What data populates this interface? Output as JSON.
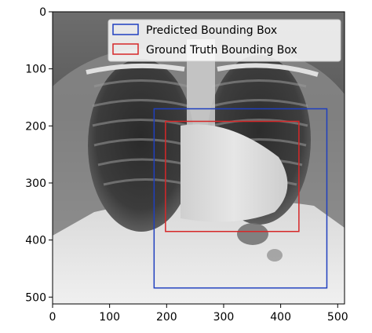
{
  "chart_data": {
    "type": "image",
    "title": "",
    "xlabel": "",
    "ylabel": "",
    "xlim": [
      0,
      512
    ],
    "ylim": [
      512,
      0
    ],
    "y_axis_inverted": true,
    "x_ticks": [
      0,
      100,
      200,
      300,
      400,
      500
    ],
    "y_ticks": [
      0,
      100,
      200,
      300,
      400,
      500
    ],
    "grid": false,
    "image": "grayscale chest x-ray",
    "legend": {
      "placement": "top-right",
      "entries": [
        {
          "label": "Predicted Bounding Box",
          "color": "#1f3fbf"
        },
        {
          "label": "Ground Truth Bounding Box",
          "color": "#d62728"
        }
      ]
    },
    "boxes": [
      {
        "name": "Predicted Bounding Box",
        "color": "#1f3fbf",
        "x_min": 178,
        "y_min": 170,
        "x_max": 481,
        "y_max": 484
      },
      {
        "name": "Ground Truth Bounding Box",
        "color": "#d62728",
        "x_min": 198,
        "y_min": 192,
        "x_max": 432,
        "y_max": 385
      }
    ]
  }
}
